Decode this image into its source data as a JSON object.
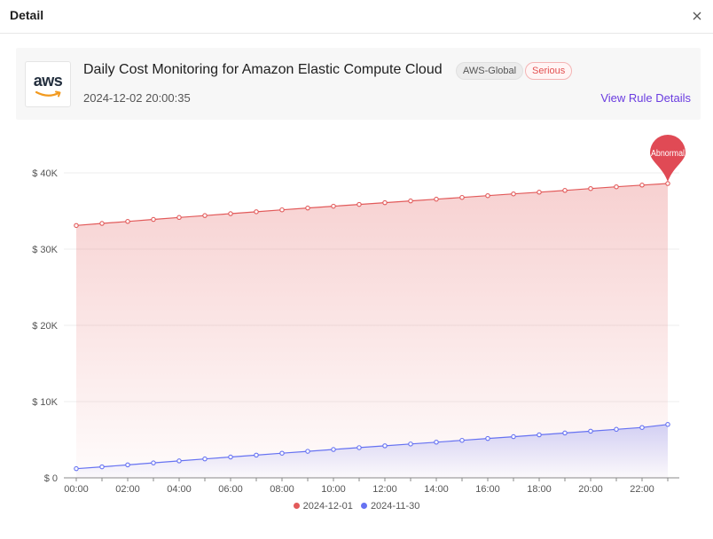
{
  "header": {
    "title": "Detail"
  },
  "card": {
    "logo_text": "aws",
    "title": "Daily Cost Monitoring for Amazon Elastic Compute Cloud",
    "region_tag": "AWS-Global",
    "severity_tag": "Serious",
    "timestamp": "2024-12-02 20:00:35",
    "link_label": "View Rule Details"
  },
  "chart_data": {
    "type": "area",
    "categories": [
      "00:00",
      "01:00",
      "02:00",
      "03:00",
      "04:00",
      "05:00",
      "06:00",
      "07:00",
      "08:00",
      "09:00",
      "10:00",
      "11:00",
      "12:00",
      "13:00",
      "14:00",
      "15:00",
      "16:00",
      "17:00",
      "18:00",
      "19:00",
      "20:00",
      "21:00",
      "22:00",
      "23:00"
    ],
    "x_tick_labels": [
      "00:00",
      "02:00",
      "04:00",
      "06:00",
      "08:00",
      "10:00",
      "12:00",
      "14:00",
      "16:00",
      "18:00",
      "20:00",
      "22:00"
    ],
    "y_tick_labels": [
      "$ 0",
      "$ 10K",
      "$ 20K",
      "$ 30K",
      "$ 40K"
    ],
    "ylim": [
      0,
      40000
    ],
    "grid": true,
    "legend_position": "bottom",
    "series": [
      {
        "name": "2024-12-01",
        "color": "#e25a5a",
        "values": [
          33100,
          33370,
          33630,
          33890,
          34150,
          34400,
          34650,
          34900,
          35150,
          35390,
          35630,
          35860,
          36090,
          36320,
          36550,
          36780,
          37010,
          37240,
          37470,
          37700,
          37940,
          38170,
          38400,
          38600
        ]
      },
      {
        "name": "2024-11-30",
        "color": "#6672f2",
        "values": [
          1200,
          1440,
          1700,
          1960,
          2220,
          2480,
          2730,
          2980,
          3230,
          3480,
          3720,
          3960,
          4200,
          4440,
          4680,
          4920,
          5160,
          5400,
          5640,
          5880,
          6120,
          6360,
          6600,
          7000
        ]
      }
    ],
    "annotation": {
      "label": "Abnormal",
      "series": "2024-12-01",
      "x": "23:00",
      "color": "#e04a55"
    }
  }
}
